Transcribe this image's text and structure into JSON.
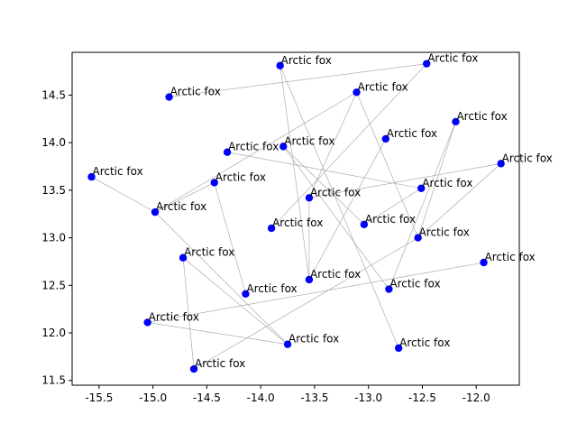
{
  "chart_data": {
    "type": "scatter",
    "title": "",
    "xlabel": "",
    "ylabel": "",
    "xlim": [
      -15.75,
      -11.6
    ],
    "ylim": [
      11.45,
      14.95
    ],
    "grid": false,
    "xticks": [
      "-15.5",
      "-15.0",
      "-14.5",
      "-14.0",
      "-13.5",
      "-13.0",
      "-12.5",
      "-12.0"
    ],
    "xtick_values": [
      -15.5,
      -15.0,
      -14.5,
      -14.0,
      -13.5,
      -13.0,
      -12.5,
      -12.0
    ],
    "yticks": [
      "11.5",
      "12.0",
      "12.5",
      "13.0",
      "13.5",
      "14.0",
      "14.5"
    ],
    "ytick_values": [
      11.5,
      12.0,
      12.5,
      13.0,
      13.5,
      14.0,
      14.5
    ],
    "point_color": "#0000ff",
    "line_color": "#a0a0a0",
    "points": [
      {
        "x": -13.82,
        "y": 14.81,
        "label": "Arctic fox"
      },
      {
        "x": -12.46,
        "y": 14.83,
        "label": "Arctic fox"
      },
      {
        "x": -14.85,
        "y": 14.48,
        "label": "Arctic fox"
      },
      {
        "x": -13.11,
        "y": 14.53,
        "label": "Arctic fox"
      },
      {
        "x": -12.19,
        "y": 14.22,
        "label": "Arctic fox"
      },
      {
        "x": -12.84,
        "y": 14.04,
        "label": "Arctic fox"
      },
      {
        "x": -13.79,
        "y": 13.96,
        "label": "Arctic fox"
      },
      {
        "x": -14.31,
        "y": 13.9,
        "label": "Arctic fox"
      },
      {
        "x": -11.77,
        "y": 13.78,
        "label": "Arctic fox"
      },
      {
        "x": -15.57,
        "y": 13.64,
        "label": "Arctic fox"
      },
      {
        "x": -14.43,
        "y": 13.58,
        "label": "Arctic fox"
      },
      {
        "x": -12.51,
        "y": 13.52,
        "label": "Arctic fox"
      },
      {
        "x": -13.55,
        "y": 13.42,
        "label": "Arctic fox"
      },
      {
        "x": -14.98,
        "y": 13.27,
        "label": "Arctic fox"
      },
      {
        "x": -13.04,
        "y": 13.14,
        "label": "Arctic fox"
      },
      {
        "x": -13.9,
        "y": 13.1,
        "label": "Arctic fox"
      },
      {
        "x": -12.54,
        "y": 13.0,
        "label": "Arctic fox"
      },
      {
        "x": -14.72,
        "y": 12.79,
        "label": "Arctic fox"
      },
      {
        "x": -11.93,
        "y": 12.74,
        "label": "Arctic fox"
      },
      {
        "x": -13.55,
        "y": 12.56,
        "label": "Arctic fox"
      },
      {
        "x": -12.81,
        "y": 12.46,
        "label": "Arctic fox"
      },
      {
        "x": -14.14,
        "y": 12.41,
        "label": "Arctic fox"
      },
      {
        "x": -15.05,
        "y": 12.11,
        "label": "Arctic fox"
      },
      {
        "x": -13.75,
        "y": 11.88,
        "label": "Arctic fox"
      },
      {
        "x": -12.72,
        "y": 11.84,
        "label": "Arctic fox"
      },
      {
        "x": -14.62,
        "y": 11.62,
        "label": "Arctic fox"
      }
    ],
    "connections": [
      [
        2,
        1
      ],
      [
        1,
        15
      ],
      [
        0,
        19
      ],
      [
        0,
        24
      ],
      [
        3,
        12
      ],
      [
        3,
        13
      ],
      [
        4,
        20
      ],
      [
        4,
        16
      ],
      [
        5,
        19
      ],
      [
        6,
        14
      ],
      [
        6,
        20
      ],
      [
        7,
        11
      ],
      [
        9,
        13
      ],
      [
        13,
        23
      ],
      [
        10,
        13
      ],
      [
        10,
        21
      ],
      [
        12,
        8
      ],
      [
        8,
        16
      ],
      [
        16,
        25
      ],
      [
        17,
        25
      ],
      [
        17,
        23
      ],
      [
        18,
        22
      ],
      [
        22,
        23
      ],
      [
        14,
        11
      ],
      [
        19,
        12
      ],
      [
        3,
        16
      ]
    ]
  }
}
